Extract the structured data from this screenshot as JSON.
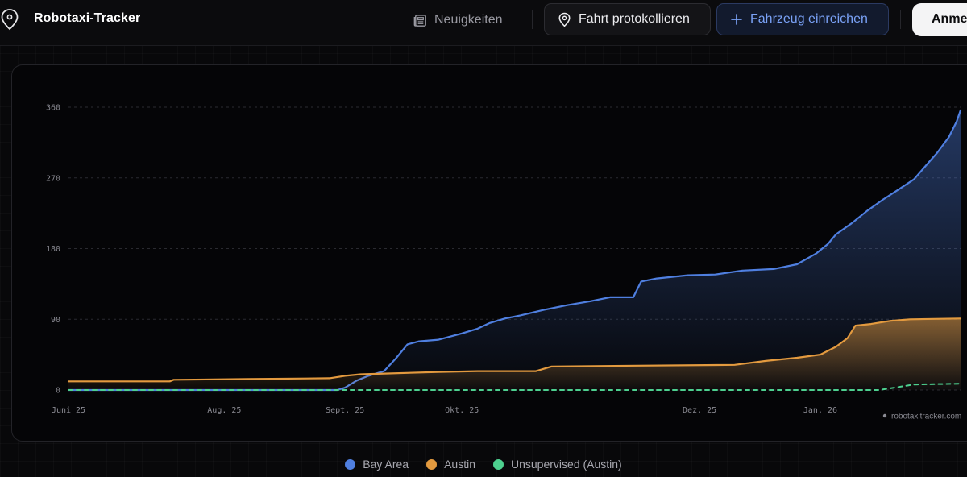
{
  "nav": {
    "brand": "Robotaxi-Tracker",
    "news_label": "Neuigkeiten",
    "log_ride_label": "Fahrt protokollieren",
    "submit_vehicle_label": "Fahrzeug einreichen",
    "login_label": "Anme"
  },
  "colors": {
    "bay_area": "#4f7fe0",
    "austin": "#e39a3f",
    "unsupervised": "#4dd08f",
    "background": "#08080a"
  },
  "chart_data": {
    "type": "area",
    "y_ticks": [
      "0",
      "90",
      "180",
      "270",
      "360"
    ],
    "x_ticks": [
      "Juni 25",
      "Aug. 25",
      "Sept. 25",
      "Okt. 25",
      "Dez. 25",
      "Jan. 26"
    ],
    "ylim": [
      0,
      360
    ],
    "xlim": [
      "2025-06-22",
      "2026-02-06"
    ],
    "grid": true,
    "legend_position": "bottom-center",
    "watermark": "robotaxitracker.com",
    "series": [
      {
        "name": "Bay Area",
        "style": "solid-area",
        "points": [
          [
            "2025-06-22",
            0
          ],
          [
            "2025-08-30",
            0
          ],
          [
            "2025-09-01",
            3
          ],
          [
            "2025-09-04",
            12
          ],
          [
            "2025-09-07",
            18
          ],
          [
            "2025-09-11",
            24
          ],
          [
            "2025-09-14",
            40
          ],
          [
            "2025-09-17",
            58
          ],
          [
            "2025-09-20",
            62
          ],
          [
            "2025-09-25",
            64
          ],
          [
            "2025-10-01",
            72
          ],
          [
            "2025-10-05",
            78
          ],
          [
            "2025-10-08",
            85
          ],
          [
            "2025-10-12",
            91
          ],
          [
            "2025-10-16",
            95
          ],
          [
            "2025-10-22",
            102
          ],
          [
            "2025-10-28",
            108
          ],
          [
            "2025-11-03",
            113
          ],
          [
            "2025-11-08",
            118
          ],
          [
            "2025-11-14",
            118
          ],
          [
            "2025-11-16",
            138
          ],
          [
            "2025-11-20",
            142
          ],
          [
            "2025-11-28",
            146
          ],
          [
            "2025-12-05",
            147
          ],
          [
            "2025-12-12",
            152
          ],
          [
            "2025-12-20",
            154
          ],
          [
            "2025-12-26",
            160
          ],
          [
            "2025-12-31",
            174
          ],
          [
            "2026-01-03",
            186
          ],
          [
            "2026-01-05",
            198
          ],
          [
            "2026-01-09",
            212
          ],
          [
            "2026-01-13",
            228
          ],
          [
            "2026-01-17",
            242
          ],
          [
            "2026-01-21",
            255
          ],
          [
            "2026-01-25",
            268
          ],
          [
            "2026-01-28",
            285
          ],
          [
            "2026-01-31",
            302
          ],
          [
            "2026-02-03",
            322
          ],
          [
            "2026-02-05",
            342
          ],
          [
            "2026-02-06",
            356
          ]
        ]
      },
      {
        "name": "Austin",
        "style": "solid-area",
        "points": [
          [
            "2025-06-22",
            11
          ],
          [
            "2025-07-18",
            11
          ],
          [
            "2025-07-19",
            13
          ],
          [
            "2025-08-07",
            14
          ],
          [
            "2025-08-28",
            15
          ],
          [
            "2025-09-01",
            18
          ],
          [
            "2025-09-05",
            20
          ],
          [
            "2025-09-12",
            21
          ],
          [
            "2025-09-25",
            23
          ],
          [
            "2025-10-05",
            24
          ],
          [
            "2025-10-20",
            24
          ],
          [
            "2025-10-24",
            30
          ],
          [
            "2025-11-15",
            31
          ],
          [
            "2025-12-10",
            32
          ],
          [
            "2025-12-18",
            37
          ],
          [
            "2025-12-26",
            41
          ],
          [
            "2026-01-01",
            45
          ],
          [
            "2026-01-05",
            55
          ],
          [
            "2026-01-08",
            66
          ],
          [
            "2026-01-10",
            82
          ],
          [
            "2026-01-14",
            84
          ],
          [
            "2026-01-19",
            88
          ],
          [
            "2026-01-24",
            90
          ],
          [
            "2026-02-06",
            91
          ]
        ]
      },
      {
        "name": "Unsupervised (Austin)",
        "style": "dashed",
        "points": [
          [
            "2025-06-22",
            0
          ],
          [
            "2026-01-16",
            0
          ],
          [
            "2026-01-20",
            3
          ],
          [
            "2026-01-25",
            7
          ],
          [
            "2026-02-06",
            8
          ]
        ]
      }
    ]
  }
}
